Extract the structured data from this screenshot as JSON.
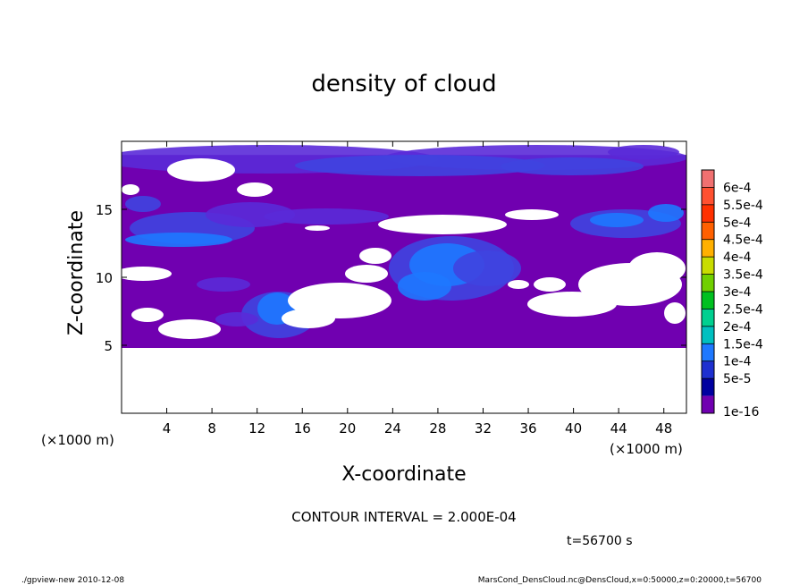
{
  "chart_data": {
    "type": "heatmap",
    "title": "density of cloud",
    "xlabel": "X-coordinate",
    "ylabel": "Z-coordinate",
    "x_unit_left": "(×1000 m)",
    "x_unit_right": "(×1000 m)",
    "xlim": [
      0,
      50
    ],
    "ylim": [
      0,
      20
    ],
    "xticks": [
      "4",
      "8",
      "12",
      "16",
      "20",
      "24",
      "28",
      "32",
      "36",
      "40",
      "44",
      "48"
    ],
    "yticks": [
      "5",
      "10",
      "15"
    ],
    "colorbar": {
      "labels": [
        "6e-4",
        "5.5e-4",
        "5e-4",
        "4.5e-4",
        "4e-4",
        "3.5e-4",
        "3e-4",
        "2.5e-4",
        "2e-4",
        "1.5e-4",
        "1e-4",
        "5e-5",
        "1e-16"
      ],
      "colors": [
        "#f07070",
        "#ff5030",
        "#ff3000",
        "#ff6000",
        "#ffb000",
        "#c8dc00",
        "#70d000",
        "#00c020",
        "#00d090",
        "#00c0c0",
        "#1e78ff",
        "#1e30d0",
        "#0000a0",
        "#7000b0"
      ]
    },
    "cloud_layer": {
      "z_bottom": 4.8,
      "z_top": 19.0
    },
    "contour_interval_text": "CONTOUR INTERVAL = 2.000E-04",
    "time_text": "t=56700 s"
  },
  "footer": {
    "left": "./gpview-new   2010-12-08",
    "right": "MarsCond_DensCloud.nc@DensCloud,x=0:50000,z=0:20000,t=56700"
  },
  "colors": {
    "base": "#7000b0",
    "low": "#5a2ad8",
    "mid": "#3f44e0",
    "high": "#1e78ff",
    "void": "#ffffff"
  }
}
